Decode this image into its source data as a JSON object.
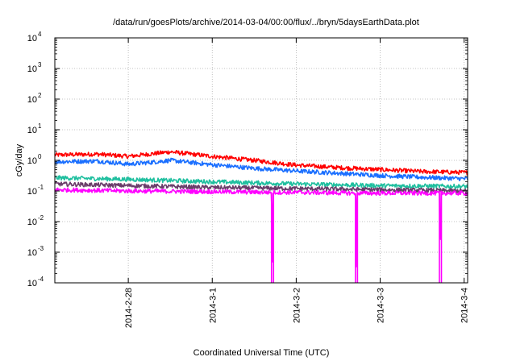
{
  "chart_data": {
    "type": "line",
    "title": "/data/run/goesPlots/archive/2014-03-04/00:00/flux/../bryn/5daysEarthData.plot",
    "xlabel": "Coordinated Universal Time (UTC)",
    "ylabel": "cGy/day",
    "y_scale": "log",
    "ylim": [
      0.0001,
      10000
    ],
    "y_ticks": [
      {
        "value": 0.0001,
        "mantissa": "10",
        "exp": "-4"
      },
      {
        "value": 0.001,
        "mantissa": "10",
        "exp": "-3"
      },
      {
        "value": 0.01,
        "mantissa": "10",
        "exp": "-2"
      },
      {
        "value": 0.1,
        "mantissa": "10",
        "exp": "-1"
      },
      {
        "value": 1,
        "mantissa": "10",
        "exp": "0"
      },
      {
        "value": 10,
        "mantissa": "10",
        "exp": "1"
      },
      {
        "value": 100,
        "mantissa": "10",
        "exp": "2"
      },
      {
        "value": 1000,
        "mantissa": "10",
        "exp": "3"
      },
      {
        "value": 10000,
        "mantissa": "10",
        "exp": "4"
      }
    ],
    "xlim": [
      "2014-02-27 03:00",
      "2014-03-04 01:00"
    ],
    "x_ticks": [
      {
        "value": "2014-02-28 00:00",
        "label": "2014-2-28"
      },
      {
        "value": "2014-03-01 00:00",
        "label": "2014-3-1"
      },
      {
        "value": "2014-03-02 00:00",
        "label": "2014-3-2"
      },
      {
        "value": "2014-03-03 00:00",
        "label": "2014-3-3"
      },
      {
        "value": "2014-03-04 00:00",
        "label": "2014-3-4"
      }
    ],
    "grid": true,
    "series": [
      {
        "color": "#ff0000",
        "x": [
          "2014-02-27 03:00",
          "2014-02-27 15:00",
          "2014-02-28 00:00",
          "2014-02-28 06:00",
          "2014-02-28 12:00",
          "2014-02-28 18:00",
          "2014-03-01 00:00",
          "2014-03-01 12:00",
          "2014-03-02 00:00",
          "2014-03-02 12:00",
          "2014-03-03 00:00",
          "2014-03-03 12:00",
          "2014-03-04 01:00"
        ],
        "y": [
          1.5,
          1.6,
          1.35,
          1.6,
          1.9,
          1.6,
          1.35,
          1.0,
          0.7,
          0.58,
          0.5,
          0.43,
          0.4
        ]
      },
      {
        "color": "#1a6fff",
        "x": [
          "2014-02-27 03:00",
          "2014-02-27 15:00",
          "2014-02-28 00:00",
          "2014-02-28 06:00",
          "2014-02-28 12:00",
          "2014-02-28 18:00",
          "2014-03-01 00:00",
          "2014-03-01 12:00",
          "2014-03-02 00:00",
          "2014-03-02 12:00",
          "2014-03-03 00:00",
          "2014-03-03 12:00",
          "2014-03-04 01:00"
        ],
        "y": [
          0.9,
          0.95,
          0.75,
          0.85,
          1.0,
          0.85,
          0.72,
          0.55,
          0.45,
          0.38,
          0.32,
          0.28,
          0.25
        ]
      },
      {
        "color": "#1fbf9f",
        "x": [
          "2014-02-27 03:00",
          "2014-02-28 00:00",
          "2014-03-01 00:00",
          "2014-03-02 00:00",
          "2014-03-03 00:00",
          "2014-03-04 01:00"
        ],
        "y": [
          0.27,
          0.24,
          0.2,
          0.17,
          0.15,
          0.14
        ]
      },
      {
        "color": "#6a3d6a",
        "x": [
          "2014-02-27 03:00",
          "2014-02-28 00:00",
          "2014-03-01 00:00",
          "2014-03-02 00:00",
          "2014-03-03 00:00",
          "2014-03-04 01:00"
        ],
        "y": [
          0.17,
          0.15,
          0.13,
          0.12,
          0.11,
          0.1
        ]
      },
      {
        "color": "#ff00ff",
        "x": [
          "2014-02-27 03:00",
          "2014-02-28 00:00",
          "2014-03-01 00:00",
          "2014-03-01 17:00",
          "2014-03-01 17:10",
          "2014-03-01 17:20",
          "2014-03-02 00:00",
          "2014-03-02 17:00",
          "2014-03-02 17:10",
          "2014-03-02 17:20",
          "2014-03-03 00:00",
          "2014-03-03 17:00",
          "2014-03-03 17:10",
          "2014-03-03 17:20",
          "2014-03-04 01:00"
        ],
        "y": [
          0.11,
          0.1,
          0.095,
          0.09,
          0.0001,
          0.09,
          0.09,
          0.085,
          0.0001,
          0.085,
          0.085,
          0.085,
          0.0001,
          0.085,
          0.085
        ]
      }
    ]
  }
}
